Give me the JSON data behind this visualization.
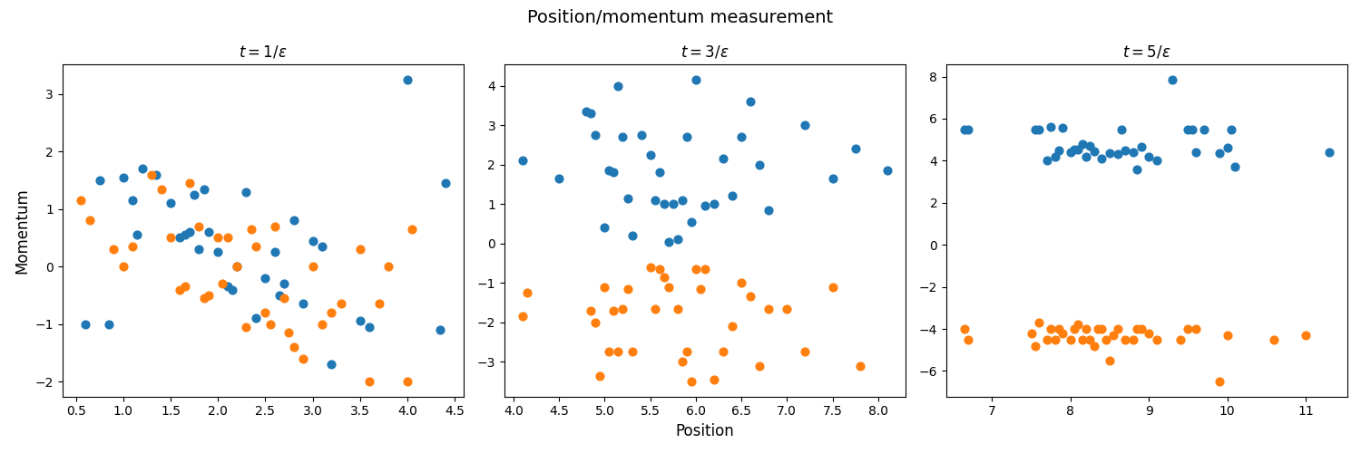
{
  "title": "Position/momentum measurement",
  "subplot_titles": [
    "$t = 1/\\varepsilon$",
    "$t = 3/\\varepsilon$",
    "$t = 5/\\varepsilon$"
  ],
  "xlabel": "Position",
  "ylabel": "Momentum",
  "blue_color": "#1f77b4",
  "orange_color": "#ff7f0e",
  "marker_size": 40,
  "plot1": {
    "blue_x": [
      0.6,
      0.75,
      0.85,
      1.0,
      1.1,
      1.15,
      1.2,
      1.35,
      1.5,
      1.6,
      1.65,
      1.7,
      1.75,
      1.8,
      1.85,
      1.9,
      2.0,
      2.1,
      2.15,
      2.2,
      2.3,
      2.4,
      2.5,
      2.6,
      2.65,
      2.7,
      2.8,
      2.9,
      3.0,
      3.1,
      3.2,
      3.5,
      3.6,
      4.0,
      4.35,
      4.4
    ],
    "blue_y": [
      -1.0,
      1.5,
      -1.0,
      1.55,
      1.15,
      0.55,
      1.7,
      1.6,
      1.1,
      0.5,
      0.55,
      0.6,
      1.25,
      0.3,
      1.35,
      0.6,
      0.25,
      -0.35,
      -0.4,
      0.0,
      1.3,
      -0.9,
      -0.2,
      0.25,
      -0.5,
      -0.3,
      0.8,
      -0.65,
      0.45,
      0.35,
      -1.7,
      -0.95,
      -1.05,
      3.25,
      -1.1,
      1.45
    ],
    "orange_x": [
      0.55,
      0.65,
      0.9,
      1.0,
      1.1,
      1.3,
      1.4,
      1.5,
      1.6,
      1.65,
      1.7,
      1.8,
      1.85,
      1.9,
      2.0,
      2.05,
      2.1,
      2.2,
      2.3,
      2.35,
      2.4,
      2.5,
      2.55,
      2.6,
      2.7,
      2.75,
      2.8,
      2.9,
      3.0,
      3.1,
      3.2,
      3.3,
      3.5,
      3.6,
      3.7,
      3.8,
      4.0,
      4.05
    ],
    "orange_y": [
      1.15,
      0.8,
      0.3,
      0.0,
      0.35,
      1.6,
      1.35,
      0.5,
      -0.4,
      -0.35,
      1.45,
      0.7,
      -0.55,
      -0.5,
      0.5,
      -0.3,
      0.5,
      0.0,
      -1.05,
      0.65,
      0.35,
      -0.8,
      -1.0,
      0.7,
      -0.55,
      -1.15,
      -1.4,
      -1.6,
      0.0,
      -1.0,
      -0.8,
      -0.65,
      0.3,
      -2.0,
      -0.65,
      0.0,
      -2.0,
      0.65
    ]
  },
  "plot2": {
    "blue_x": [
      4.1,
      4.5,
      4.8,
      4.85,
      4.9,
      5.0,
      5.05,
      5.1,
      5.15,
      5.2,
      5.25,
      5.3,
      5.4,
      5.5,
      5.55,
      5.6,
      5.65,
      5.7,
      5.75,
      5.8,
      5.85,
      5.9,
      5.95,
      6.0,
      6.1,
      6.2,
      6.3,
      6.4,
      6.5,
      6.6,
      6.7,
      6.8,
      7.2,
      7.5,
      7.75,
      8.1
    ],
    "blue_y": [
      2.1,
      1.65,
      3.35,
      3.3,
      2.75,
      0.4,
      1.85,
      1.8,
      4.0,
      2.7,
      1.15,
      0.2,
      2.75,
      2.25,
      1.1,
      1.8,
      1.0,
      0.05,
      1.0,
      0.1,
      1.1,
      2.7,
      0.55,
      4.15,
      0.95,
      1.0,
      2.15,
      1.2,
      2.7,
      3.6,
      2.0,
      0.85,
      3.0,
      1.65,
      2.4,
      1.85
    ],
    "orange_x": [
      4.1,
      4.15,
      4.85,
      4.9,
      4.95,
      5.0,
      5.05,
      5.1,
      5.15,
      5.2,
      5.25,
      5.3,
      5.5,
      5.55,
      5.6,
      5.65,
      5.7,
      5.8,
      5.85,
      5.9,
      5.95,
      6.0,
      6.05,
      6.1,
      6.2,
      6.3,
      6.4,
      6.5,
      6.6,
      6.7,
      6.8,
      7.0,
      7.2,
      7.5,
      7.8
    ],
    "orange_y": [
      -1.85,
      -1.25,
      -1.7,
      -2.0,
      -3.35,
      -1.1,
      -2.75,
      -1.7,
      -2.75,
      -1.65,
      -1.15,
      -2.75,
      -0.6,
      -1.65,
      -0.65,
      -0.85,
      -1.1,
      -1.65,
      -3.0,
      -2.75,
      -3.5,
      -0.65,
      -1.15,
      -0.65,
      -3.45,
      -2.75,
      -2.1,
      -1.0,
      -1.35,
      -3.1,
      -1.65,
      -1.65,
      -2.75,
      -1.1,
      -3.1
    ]
  },
  "plot3": {
    "blue_x": [
      6.65,
      6.7,
      7.55,
      7.6,
      7.7,
      7.75,
      7.8,
      7.85,
      7.9,
      8.0,
      8.05,
      8.1,
      8.15,
      8.2,
      8.25,
      8.3,
      8.4,
      8.5,
      8.6,
      8.65,
      8.7,
      8.8,
      8.85,
      8.9,
      9.0,
      9.1,
      9.3,
      9.5,
      9.55,
      9.6,
      9.7,
      9.9,
      10.0,
      10.05,
      10.1,
      11.3
    ],
    "blue_y": [
      5.5,
      5.5,
      5.5,
      5.5,
      4.0,
      5.6,
      4.2,
      4.5,
      5.55,
      4.4,
      4.55,
      4.55,
      4.8,
      4.2,
      4.7,
      4.45,
      4.1,
      4.35,
      4.3,
      5.5,
      4.5,
      4.4,
      3.6,
      4.65,
      4.2,
      4.0,
      7.85,
      5.5,
      5.5,
      4.4,
      5.5,
      4.35,
      4.6,
      5.5,
      3.7,
      4.4
    ],
    "orange_x": [
      6.65,
      6.7,
      7.5,
      7.55,
      7.6,
      7.7,
      7.75,
      7.8,
      7.85,
      7.9,
      8.0,
      8.05,
      8.1,
      8.15,
      8.2,
      8.25,
      8.3,
      8.35,
      8.4,
      8.45,
      8.5,
      8.55,
      8.6,
      8.7,
      8.8,
      8.85,
      8.9,
      9.0,
      9.1,
      9.4,
      9.5,
      9.6,
      9.9,
      10.0,
      10.6,
      11.0
    ],
    "orange_y": [
      -4.0,
      -4.5,
      -4.2,
      -4.8,
      -3.7,
      -4.5,
      -4.0,
      -4.5,
      -4.0,
      -4.2,
      -4.5,
      -4.0,
      -3.8,
      -4.5,
      -4.0,
      -4.5,
      -4.8,
      -4.0,
      -4.0,
      -4.5,
      -5.5,
      -4.3,
      -4.0,
      -4.5,
      -4.5,
      -4.0,
      -4.0,
      -4.2,
      -4.5,
      -4.5,
      -4.0,
      -4.0,
      -6.5,
      -4.3,
      -4.5,
      -4.3
    ]
  },
  "figsize": [
    15.0,
    5.0
  ],
  "dpi": 100,
  "title_fontsize": 14,
  "subtitle_fontsize": 12,
  "label_fontsize": 12
}
